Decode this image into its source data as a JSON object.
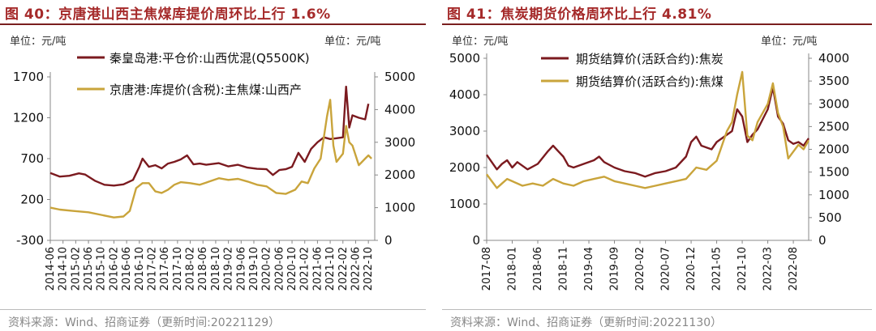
{
  "colors": {
    "title": "#a52a2a",
    "series_dark": "#7b1a1f",
    "series_gold": "#c9a43b"
  },
  "left": {
    "title": "图 40：京唐港山西主焦煤库提价周环比上行 1.6%",
    "unit_left": "单位：元/吨",
    "unit_right": "单位：元/吨",
    "source": "资料来源：Wind、招商证券（更新时间:20221129）"
  },
  "right": {
    "title": "图 41：焦炭期货价格周环比上行 4.81%",
    "unit_left": "单位：元/吨",
    "unit_right": "单位：元/吨",
    "source": "资料来源：Wind、招商证券（更新时间:20221130）"
  },
  "chart_data": [
    {
      "type": "line",
      "x_start": "2014-06",
      "x_end": "2022-12",
      "xticks": [
        "2014-06",
        "2014-10",
        "2015-02",
        "2015-06",
        "2015-10",
        "2016-02",
        "2016-06",
        "2016-10",
        "2017-02",
        "2017-06",
        "2017-10",
        "2018-02",
        "2018-06",
        "2018-10",
        "2019-02",
        "2019-06",
        "2019-10",
        "2020-02",
        "2020-06",
        "2020-10",
        "2021-02",
        "2021-06",
        "2021-10",
        "2022-02",
        "2022-06",
        "2022-10"
      ],
      "y_left": {
        "min": -300,
        "max": 1700,
        "ticks": [
          -300,
          200,
          700,
          1200,
          1700
        ]
      },
      "y_right": {
        "min": 0,
        "max": 5000,
        "ticks": [
          0,
          1000,
          2000,
          3000,
          4000,
          5000
        ]
      },
      "grid": false,
      "legend_position": "top-left",
      "series": [
        {
          "name": "秦皇岛港:平仓价:山西优混(Q5500K)",
          "axis": "left",
          "color": "#7b1a1f",
          "points": [
            [
              "2014-06",
              525
            ],
            [
              "2014-09",
              480
            ],
            [
              "2014-12",
              490
            ],
            [
              "2015-03",
              520
            ],
            [
              "2015-05",
              505
            ],
            [
              "2015-08",
              430
            ],
            [
              "2015-11",
              380
            ],
            [
              "2016-02",
              370
            ],
            [
              "2016-05",
              385
            ],
            [
              "2016-08",
              440
            ],
            [
              "2016-10",
              600
            ],
            [
              "2016-11",
              700
            ],
            [
              "2017-01",
              600
            ],
            [
              "2017-03",
              620
            ],
            [
              "2017-05",
              580
            ],
            [
              "2017-07",
              640
            ],
            [
              "2017-09",
              660
            ],
            [
              "2017-11",
              690
            ],
            [
              "2018-01",
              740
            ],
            [
              "2018-03",
              630
            ],
            [
              "2018-05",
              640
            ],
            [
              "2018-07",
              625
            ],
            [
              "2018-09",
              635
            ],
            [
              "2018-11",
              645
            ],
            [
              "2019-02",
              605
            ],
            [
              "2019-05",
              625
            ],
            [
              "2019-08",
              590
            ],
            [
              "2019-11",
              575
            ],
            [
              "2020-02",
              570
            ],
            [
              "2020-04",
              500
            ],
            [
              "2020-06",
              560
            ],
            [
              "2020-08",
              570
            ],
            [
              "2020-10",
              600
            ],
            [
              "2020-12",
              770
            ],
            [
              "2021-02",
              660
            ],
            [
              "2021-04",
              820
            ],
            [
              "2021-06",
              900
            ],
            [
              "2021-08",
              960
            ],
            [
              "2021-10",
              940
            ],
            [
              "2021-12",
              950
            ],
            [
              "2022-02",
              960
            ],
            [
              "2022-03",
              1580
            ],
            [
              "2022-04",
              1080
            ],
            [
              "2022-05",
              1230
            ],
            [
              "2022-07",
              1200
            ],
            [
              "2022-09",
              1180
            ],
            [
              "2022-10",
              1370
            ]
          ]
        },
        {
          "name": "京唐港:库提价(含税):主焦煤:山西产",
          "axis": "right",
          "color": "#c9a43b",
          "points": [
            [
              "2014-06",
              1000
            ],
            [
              "2014-09",
              940
            ],
            [
              "2015-01",
              900
            ],
            [
              "2015-06",
              860
            ],
            [
              "2015-10",
              780
            ],
            [
              "2016-02",
              700
            ],
            [
              "2016-05",
              730
            ],
            [
              "2016-07",
              900
            ],
            [
              "2016-09",
              1600
            ],
            [
              "2016-11",
              1750
            ],
            [
              "2017-01",
              1750
            ],
            [
              "2017-03",
              1500
            ],
            [
              "2017-05",
              1450
            ],
            [
              "2017-07",
              1550
            ],
            [
              "2017-09",
              1700
            ],
            [
              "2017-11",
              1780
            ],
            [
              "2018-02",
              1750
            ],
            [
              "2018-05",
              1700
            ],
            [
              "2018-08",
              1800
            ],
            [
              "2018-11",
              1900
            ],
            [
              "2019-02",
              1850
            ],
            [
              "2019-05",
              1880
            ],
            [
              "2019-08",
              1800
            ],
            [
              "2019-11",
              1700
            ],
            [
              "2020-02",
              1650
            ],
            [
              "2020-05",
              1450
            ],
            [
              "2020-08",
              1420
            ],
            [
              "2020-11",
              1550
            ],
            [
              "2021-01",
              1800
            ],
            [
              "2021-03",
              1750
            ],
            [
              "2021-05",
              2200
            ],
            [
              "2021-07",
              2500
            ],
            [
              "2021-09",
              3800
            ],
            [
              "2021-10",
              4300
            ],
            [
              "2021-11",
              2900
            ],
            [
              "2021-12",
              2400
            ],
            [
              "2022-02",
              2650
            ],
            [
              "2022-03",
              3500
            ],
            [
              "2022-04",
              3000
            ],
            [
              "2022-05",
              2900
            ],
            [
              "2022-07",
              2300
            ],
            [
              "2022-09",
              2500
            ],
            [
              "2022-10",
              2600
            ],
            [
              "2022-11",
              2500
            ]
          ]
        }
      ]
    },
    {
      "type": "line",
      "x_start": "2017-08",
      "x_end": "2022-11",
      "xticks": [
        "2017-08",
        "2018-01",
        "2018-06",
        "2018-11",
        "2019-04",
        "2019-09",
        "2020-02",
        "2020-07",
        "2020-12",
        "2021-05",
        "2021-10",
        "2022-03",
        "2022-08"
      ],
      "y_left": {
        "min": 0,
        "max": 5000,
        "ticks": [
          0,
          1000,
          2000,
          3000,
          4000,
          5000
        ]
      },
      "y_right": {
        "min": 0,
        "max": 4000,
        "ticks": [
          0,
          500,
          1000,
          1500,
          2000,
          2500,
          3000,
          3500,
          4000
        ]
      },
      "grid": false,
      "legend_position": "top-center",
      "series": [
        {
          "name": "期货结算价(活跃合约):焦炭",
          "axis": "left",
          "color": "#7b1a1f",
          "points": [
            [
              "2017-08",
              2350
            ],
            [
              "2017-09",
              2150
            ],
            [
              "2017-10",
              1950
            ],
            [
              "2017-11",
              2100
            ],
            [
              "2017-12",
              2200
            ],
            [
              "2018-01",
              2000
            ],
            [
              "2018-02",
              2150
            ],
            [
              "2018-04",
              1950
            ],
            [
              "2018-06",
              2100
            ],
            [
              "2018-08",
              2450
            ],
            [
              "2018-09",
              2600
            ],
            [
              "2018-10",
              2450
            ],
            [
              "2018-11",
              2300
            ],
            [
              "2018-12",
              2050
            ],
            [
              "2019-01",
              2000
            ],
            [
              "2019-03",
              2100
            ],
            [
              "2019-05",
              2200
            ],
            [
              "2019-06",
              2300
            ],
            [
              "2019-07",
              2150
            ],
            [
              "2019-09",
              2000
            ],
            [
              "2019-11",
              1900
            ],
            [
              "2020-01",
              1850
            ],
            [
              "2020-03",
              1750
            ],
            [
              "2020-05",
              1850
            ],
            [
              "2020-07",
              1900
            ],
            [
              "2020-09",
              2000
            ],
            [
              "2020-11",
              2300
            ],
            [
              "2020-12",
              2700
            ],
            [
              "2021-01",
              2850
            ],
            [
              "2021-02",
              2600
            ],
            [
              "2021-04",
              2500
            ],
            [
              "2021-05",
              2700
            ],
            [
              "2021-06",
              2800
            ],
            [
              "2021-08",
              3000
            ],
            [
              "2021-09",
              3600
            ],
            [
              "2021-10",
              3400
            ],
            [
              "2021-11",
              2700
            ],
            [
              "2021-12",
              2900
            ],
            [
              "2022-01",
              3050
            ],
            [
              "2022-03",
              3600
            ],
            [
              "2022-04",
              4200
            ],
            [
              "2022-05",
              3400
            ],
            [
              "2022-06",
              3200
            ],
            [
              "2022-07",
              2750
            ],
            [
              "2022-08",
              2650
            ],
            [
              "2022-09",
              2700
            ],
            [
              "2022-10",
              2600
            ],
            [
              "2022-11",
              2800
            ]
          ]
        },
        {
          "name": "期货结算价(活跃合约):焦煤",
          "axis": "right",
          "color": "#c9a43b",
          "points": [
            [
              "2017-08",
              1450
            ],
            [
              "2017-09",
              1300
            ],
            [
              "2017-10",
              1150
            ],
            [
              "2017-11",
              1250
            ],
            [
              "2017-12",
              1350
            ],
            [
              "2018-01",
              1300
            ],
            [
              "2018-03",
              1200
            ],
            [
              "2018-05",
              1250
            ],
            [
              "2018-07",
              1200
            ],
            [
              "2018-09",
              1350
            ],
            [
              "2018-11",
              1250
            ],
            [
              "2019-01",
              1200
            ],
            [
              "2019-03",
              1300
            ],
            [
              "2019-05",
              1350
            ],
            [
              "2019-07",
              1400
            ],
            [
              "2019-09",
              1300
            ],
            [
              "2019-11",
              1250
            ],
            [
              "2020-01",
              1200
            ],
            [
              "2020-03",
              1150
            ],
            [
              "2020-05",
              1200
            ],
            [
              "2020-07",
              1250
            ],
            [
              "2020-09",
              1300
            ],
            [
              "2020-11",
              1350
            ],
            [
              "2021-01",
              1600
            ],
            [
              "2021-03",
              1550
            ],
            [
              "2021-05",
              1750
            ],
            [
              "2021-07",
              2400
            ],
            [
              "2021-08",
              2600
            ],
            [
              "2021-09",
              3200
            ],
            [
              "2021-10",
              3700
            ],
            [
              "2021-11",
              2300
            ],
            [
              "2021-12",
              2200
            ],
            [
              "2022-01",
              2600
            ],
            [
              "2022-03",
              3000
            ],
            [
              "2022-04",
              3450
            ],
            [
              "2022-05",
              2800
            ],
            [
              "2022-06",
              2500
            ],
            [
              "2022-07",
              1800
            ],
            [
              "2022-08",
              1950
            ],
            [
              "2022-09",
              2100
            ],
            [
              "2022-10",
              2000
            ],
            [
              "2022-11",
              2200
            ]
          ]
        }
      ]
    }
  ]
}
